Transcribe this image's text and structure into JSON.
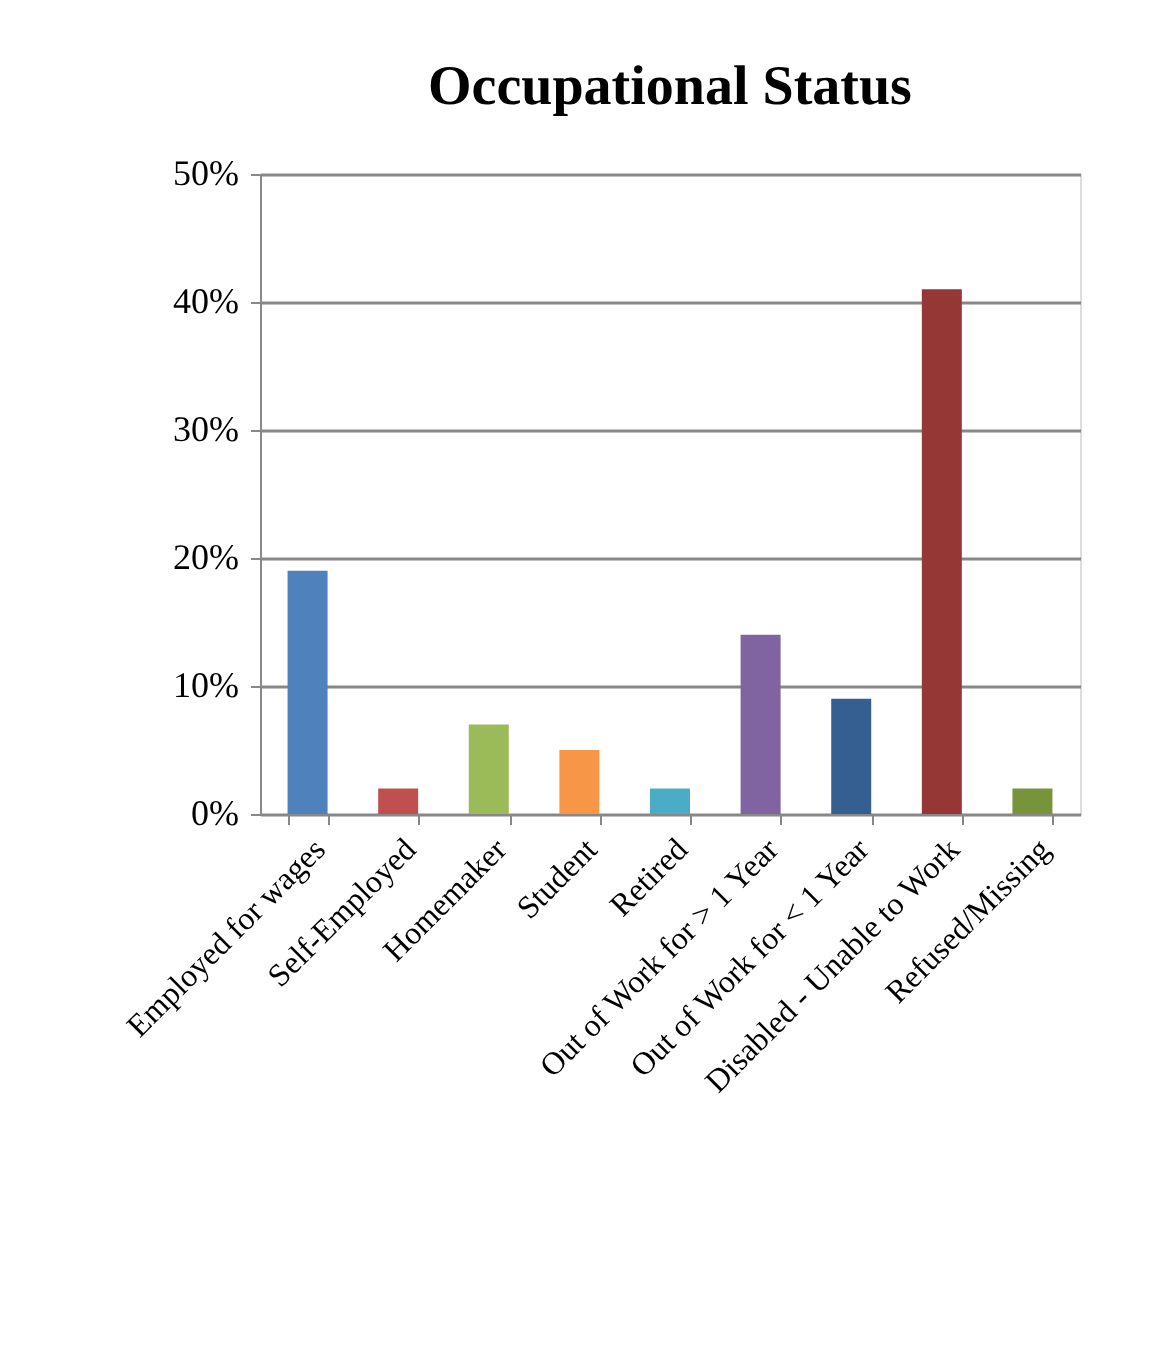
{
  "chart_data": {
    "type": "bar",
    "title": "Occupational Status",
    "categories": [
      "Employed for wages",
      "Self-Employed",
      "Homemaker",
      "Student",
      "Retired",
      "Out of Work for > 1 Year",
      "Out of Work for < 1 Year",
      "Disabled - Unable to Work",
      "Refused/Missing"
    ],
    "values": [
      19,
      2,
      7,
      5,
      2,
      14,
      9,
      41,
      2
    ],
    "colors": [
      "#4f81bd",
      "#c0504d",
      "#9bbb59",
      "#f79646",
      "#4bacc6",
      "#8064a2",
      "#355f91",
      "#953735",
      "#77933c"
    ],
    "ylim": [
      0,
      50
    ],
    "yticks": [
      {
        "value": 0,
        "label": "0%"
      },
      {
        "value": 10,
        "label": "10%"
      },
      {
        "value": 20,
        "label": "20%"
      },
      {
        "value": 30,
        "label": "30%"
      },
      {
        "value": 40,
        "label": "40%"
      },
      {
        "value": 50,
        "label": "50%"
      }
    ],
    "grid": "y"
  }
}
